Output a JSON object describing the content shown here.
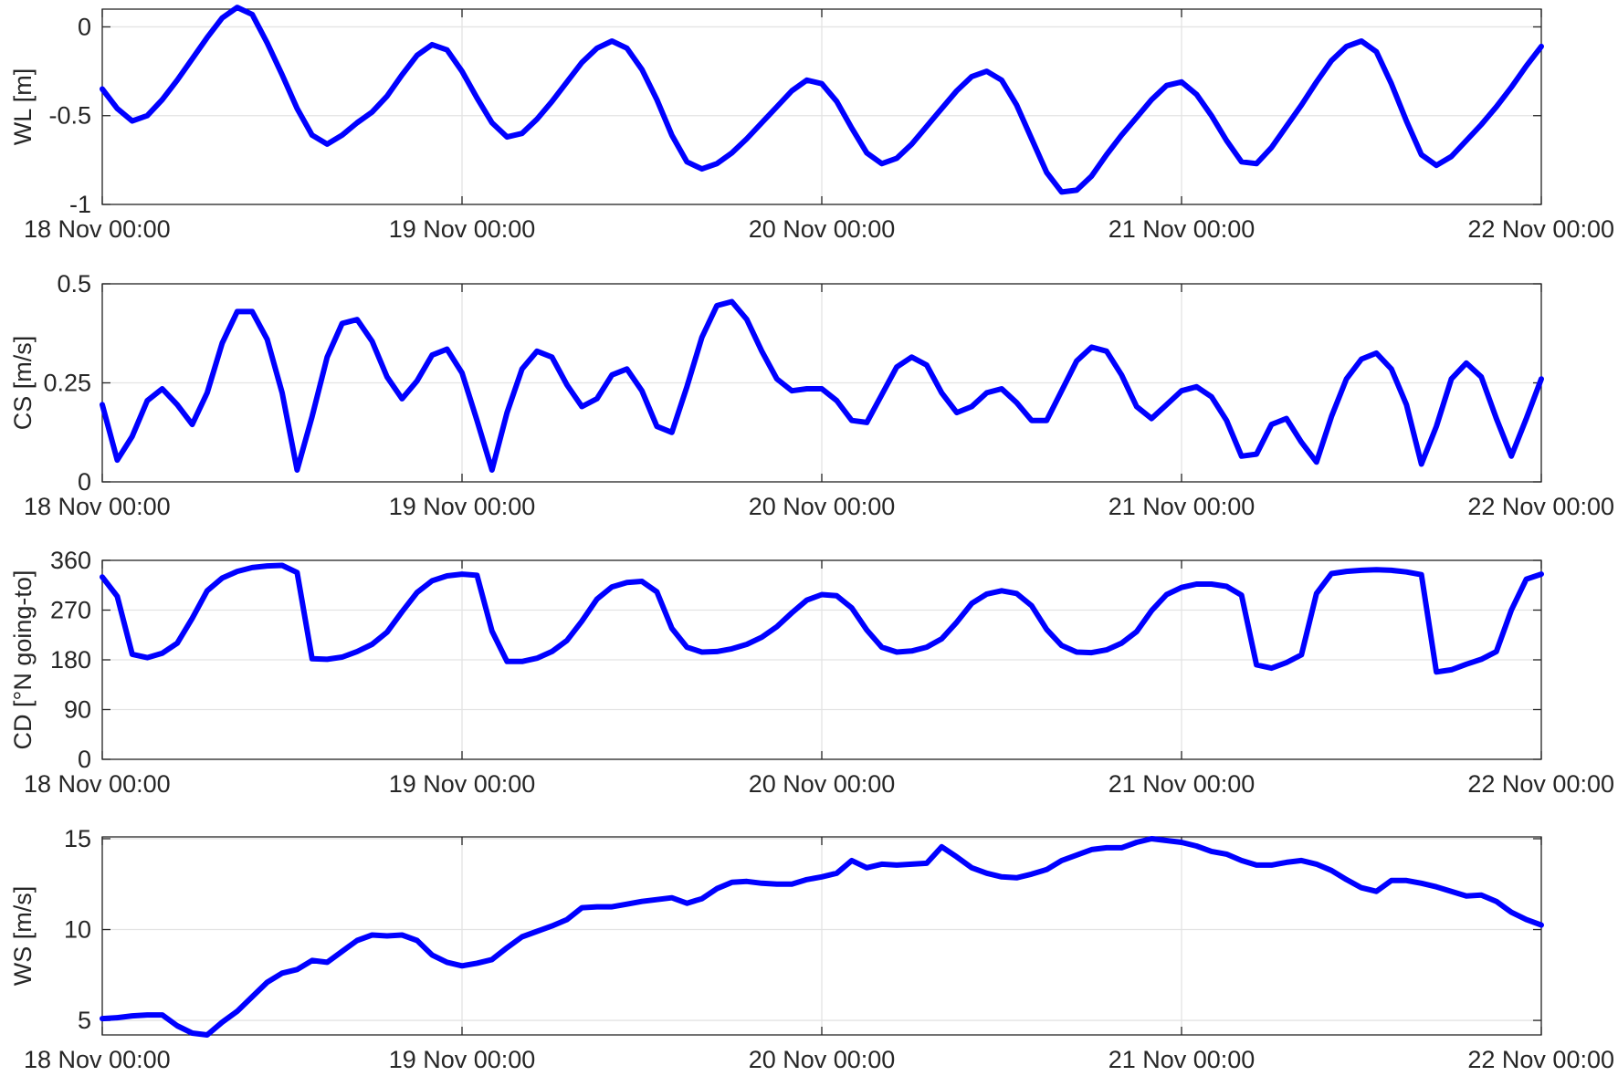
{
  "line_color": "#0000ff",
  "chart_data": [
    {
      "type": "line",
      "title": "",
      "xlabel": "",
      "ylabel": "WL [m]",
      "xlim": [
        "18 Nov 00:00",
        "22 Nov 00:00"
      ],
      "ylim": [
        -1,
        0.1
      ],
      "x_tick_labels": [
        "18 Nov 00:00",
        "19 Nov 00:00",
        "20 Nov 00:00",
        "21 Nov 00:00",
        "22 Nov 00:00"
      ],
      "y_ticks": [
        -1,
        -0.5,
        0
      ],
      "y_tick_labels": [
        "-1",
        "-0.5",
        "0"
      ],
      "grid": true,
      "x_hours": [
        0,
        1,
        2,
        3,
        4,
        5,
        6,
        7,
        8,
        9,
        10,
        11,
        12,
        13,
        14,
        15,
        16,
        17,
        18,
        19,
        20,
        21,
        22,
        23,
        24,
        25,
        26,
        27,
        28,
        29,
        30,
        31,
        32,
        33,
        34,
        35,
        36,
        37,
        38,
        39,
        40,
        41,
        42,
        43,
        44,
        45,
        46,
        47,
        48,
        49,
        50,
        51,
        52,
        53,
        54,
        55,
        56,
        57,
        58,
        59,
        60,
        61,
        62,
        63,
        64,
        65,
        66,
        67,
        68,
        69,
        70,
        71,
        72,
        73,
        74,
        75,
        76,
        77,
        78,
        79,
        80,
        81,
        82,
        83,
        84,
        85,
        86,
        87,
        88,
        89,
        90,
        91,
        92,
        93,
        94,
        95,
        96
      ],
      "values": [
        -0.35,
        -0.46,
        -0.53,
        -0.5,
        -0.41,
        -0.3,
        -0.18,
        -0.06,
        0.05,
        0.11,
        0.07,
        -0.09,
        -0.27,
        -0.46,
        -0.61,
        -0.66,
        -0.61,
        -0.54,
        -0.48,
        -0.39,
        -0.27,
        -0.16,
        -0.1,
        -0.13,
        -0.25,
        -0.4,
        -0.54,
        -0.62,
        -0.6,
        -0.52,
        -0.42,
        -0.31,
        -0.2,
        -0.12,
        -0.08,
        -0.12,
        -0.24,
        -0.41,
        -0.61,
        -0.76,
        -0.8,
        -0.77,
        -0.71,
        -0.63,
        -0.54,
        -0.45,
        -0.36,
        -0.3,
        -0.32,
        -0.42,
        -0.57,
        -0.71,
        -0.77,
        -0.74,
        -0.66,
        -0.56,
        -0.46,
        -0.36,
        -0.28,
        -0.25,
        -0.3,
        -0.44,
        -0.63,
        -0.82,
        -0.93,
        -0.92,
        -0.84,
        -0.72,
        -0.61,
        -0.51,
        -0.41,
        -0.33,
        -0.31,
        -0.38,
        -0.5,
        -0.64,
        -0.76,
        -0.77,
        -0.68,
        -0.56,
        -0.44,
        -0.31,
        -0.19,
        -0.11,
        -0.08,
        -0.14,
        -0.32,
        -0.53,
        -0.72,
        -0.78,
        -0.73,
        -0.64,
        -0.55,
        -0.45,
        -0.34,
        -0.22,
        -0.11
      ]
    },
    {
      "type": "line",
      "title": "",
      "xlabel": "",
      "ylabel": "CS [m/s]",
      "xlim": [
        "18 Nov 00:00",
        "22 Nov 00:00"
      ],
      "ylim": [
        0,
        0.5
      ],
      "x_tick_labels": [
        "18 Nov 00:00",
        "19 Nov 00:00",
        "20 Nov 00:00",
        "21 Nov 00:00",
        "22 Nov 00:00"
      ],
      "y_ticks": [
        0,
        0.25,
        0.5
      ],
      "y_tick_labels": [
        "0",
        "0.25",
        "0.5"
      ],
      "grid": true,
      "x_hours": [
        0,
        1,
        2,
        3,
        4,
        5,
        6,
        7,
        8,
        9,
        10,
        11,
        12,
        13,
        14,
        15,
        16,
        17,
        18,
        19,
        20,
        21,
        22,
        23,
        24,
        25,
        26,
        27,
        28,
        29,
        30,
        31,
        32,
        33,
        34,
        35,
        36,
        37,
        38,
        39,
        40,
        41,
        42,
        43,
        44,
        45,
        46,
        47,
        48,
        49,
        50,
        51,
        52,
        53,
        54,
        55,
        56,
        57,
        58,
        59,
        60,
        61,
        62,
        63,
        64,
        65,
        66,
        67,
        68,
        69,
        70,
        71,
        72,
        73,
        74,
        75,
        76,
        77,
        78,
        79,
        80,
        81,
        82,
        83,
        84,
        85,
        86,
        87,
        88,
        89,
        90,
        91,
        92,
        93,
        94,
        95,
        96
      ],
      "values": [
        0.195,
        0.055,
        0.115,
        0.205,
        0.235,
        0.195,
        0.145,
        0.225,
        0.35,
        0.43,
        0.43,
        0.36,
        0.225,
        0.03,
        0.165,
        0.315,
        0.4,
        0.41,
        0.355,
        0.265,
        0.21,
        0.255,
        0.32,
        0.335,
        0.275,
        0.155,
        0.03,
        0.175,
        0.285,
        0.33,
        0.315,
        0.245,
        0.19,
        0.21,
        0.27,
        0.285,
        0.23,
        0.14,
        0.125,
        0.24,
        0.365,
        0.445,
        0.455,
        0.41,
        0.33,
        0.26,
        0.23,
        0.235,
        0.235,
        0.205,
        0.155,
        0.15,
        0.22,
        0.29,
        0.315,
        0.295,
        0.225,
        0.175,
        0.19,
        0.225,
        0.235,
        0.2,
        0.155,
        0.155,
        0.23,
        0.305,
        0.34,
        0.33,
        0.27,
        0.19,
        0.16,
        0.195,
        0.23,
        0.24,
        0.215,
        0.155,
        0.065,
        0.07,
        0.145,
        0.16,
        0.1,
        0.05,
        0.165,
        0.26,
        0.31,
        0.325,
        0.285,
        0.195,
        0.045,
        0.14,
        0.26,
        0.3,
        0.265,
        0.16,
        0.065,
        0.16,
        0.26
      ]
    },
    {
      "type": "line",
      "title": "",
      "xlabel": "",
      "ylabel": "CD [°N going-to]",
      "xlim": [
        "18 Nov 00:00",
        "22 Nov 00:00"
      ],
      "ylim": [
        0,
        360
      ],
      "x_tick_labels": [
        "18 Nov 00:00",
        "19 Nov 00:00",
        "20 Nov 00:00",
        "21 Nov 00:00",
        "22 Nov 00:00"
      ],
      "y_ticks": [
        0,
        90,
        180,
        270,
        360
      ],
      "y_tick_labels": [
        "0",
        "90",
        "180",
        "270",
        "360"
      ],
      "grid": true,
      "x_hours": [
        0,
        1,
        2,
        3,
        4,
        5,
        6,
        7,
        8,
        9,
        10,
        11,
        12,
        13,
        14,
        15,
        16,
        17,
        18,
        19,
        20,
        21,
        22,
        23,
        24,
        25,
        26,
        27,
        28,
        29,
        30,
        31,
        32,
        33,
        34,
        35,
        36,
        37,
        38,
        39,
        40,
        41,
        42,
        43,
        44,
        45,
        46,
        47,
        48,
        49,
        50,
        51,
        52,
        53,
        54,
        55,
        56,
        57,
        58,
        59,
        60,
        61,
        62,
        63,
        64,
        65,
        66,
        67,
        68,
        69,
        70,
        71,
        72,
        73,
        74,
        75,
        76,
        77,
        78,
        79,
        80,
        81,
        82,
        83,
        84,
        85,
        86,
        87,
        88,
        89,
        90,
        91,
        92,
        93,
        94,
        95,
        96
      ],
      "values": [
        330,
        295,
        190,
        184,
        192,
        210,
        255,
        305,
        328,
        340,
        347,
        350,
        351,
        338,
        182,
        181,
        185,
        195,
        208,
        230,
        267,
        302,
        323,
        332,
        335,
        333,
        232,
        177,
        177,
        183,
        195,
        215,
        250,
        290,
        312,
        320,
        322,
        303,
        237,
        203,
        194,
        195,
        200,
        208,
        221,
        240,
        265,
        288,
        298,
        296,
        274,
        234,
        203,
        194,
        196,
        203,
        218,
        248,
        282,
        299,
        305,
        300,
        278,
        235,
        206,
        194,
        193,
        198,
        210,
        231,
        269,
        298,
        311,
        317,
        317,
        313,
        297,
        171,
        165,
        175,
        189,
        300,
        336,
        340,
        342,
        343,
        342,
        339,
        334,
        158,
        162,
        172,
        181,
        195,
        270,
        326,
        335
      ]
    },
    {
      "type": "line",
      "title": "",
      "xlabel": "",
      "ylabel": "WS [m/s]",
      "xlim": [
        "18 Nov 00:00",
        "22 Nov 00:00"
      ],
      "ylim": [
        4.2,
        15.1
      ],
      "x_tick_labels": [
        "18 Nov 00:00",
        "19 Nov 00:00",
        "20 Nov 00:00",
        "21 Nov 00:00",
        "22 Nov 00:00"
      ],
      "y_ticks": [
        5,
        10,
        15
      ],
      "y_tick_labels": [
        "5",
        "10",
        "15"
      ],
      "grid": true,
      "x_hours": [
        0,
        1,
        2,
        3,
        4,
        5,
        6,
        7,
        8,
        9,
        10,
        11,
        12,
        13,
        14,
        15,
        16,
        17,
        18,
        19,
        20,
        21,
        22,
        23,
        24,
        25,
        26,
        27,
        28,
        29,
        30,
        31,
        32,
        33,
        34,
        35,
        36,
        37,
        38,
        39,
        40,
        41,
        42,
        43,
        44,
        45,
        46,
        47,
        48,
        49,
        50,
        51,
        52,
        53,
        54,
        55,
        56,
        57,
        58,
        59,
        60,
        61,
        62,
        63,
        64,
        65,
        66,
        67,
        68,
        69,
        70,
        71,
        72,
        73,
        74,
        75,
        76,
        77,
        78,
        79,
        80,
        81,
        82,
        83,
        84,
        85,
        86,
        87,
        88,
        89,
        90,
        91,
        92,
        93,
        94,
        95,
        96
      ],
      "values": [
        5.1,
        5.15,
        5.25,
        5.3,
        5.3,
        4.7,
        4.3,
        4.2,
        4.9,
        5.5,
        6.3,
        7.1,
        7.6,
        7.8,
        8.3,
        8.2,
        8.8,
        9.4,
        9.7,
        9.65,
        9.7,
        9.4,
        8.6,
        8.2,
        8.0,
        8.15,
        8.35,
        9.0,
        9.6,
        9.9,
        10.2,
        10.55,
        11.2,
        11.25,
        11.25,
        11.4,
        11.55,
        11.65,
        11.75,
        11.45,
        11.7,
        12.25,
        12.6,
        12.65,
        12.55,
        12.5,
        12.5,
        12.75,
        12.9,
        13.1,
        13.8,
        13.4,
        13.6,
        13.55,
        13.6,
        13.65,
        14.55,
        14.0,
        13.4,
        13.1,
        12.9,
        12.85,
        13.05,
        13.3,
        13.8,
        14.1,
        14.4,
        14.5,
        14.5,
        14.8,
        15.0,
        14.9,
        14.8,
        14.6,
        14.3,
        14.15,
        13.8,
        13.55,
        13.55,
        13.7,
        13.8,
        13.6,
        13.25,
        12.75,
        12.3,
        12.1,
        12.7,
        12.7,
        12.55,
        12.35,
        12.1,
        11.85,
        11.9,
        11.55,
        10.95,
        10.55,
        10.25
      ]
    }
  ]
}
